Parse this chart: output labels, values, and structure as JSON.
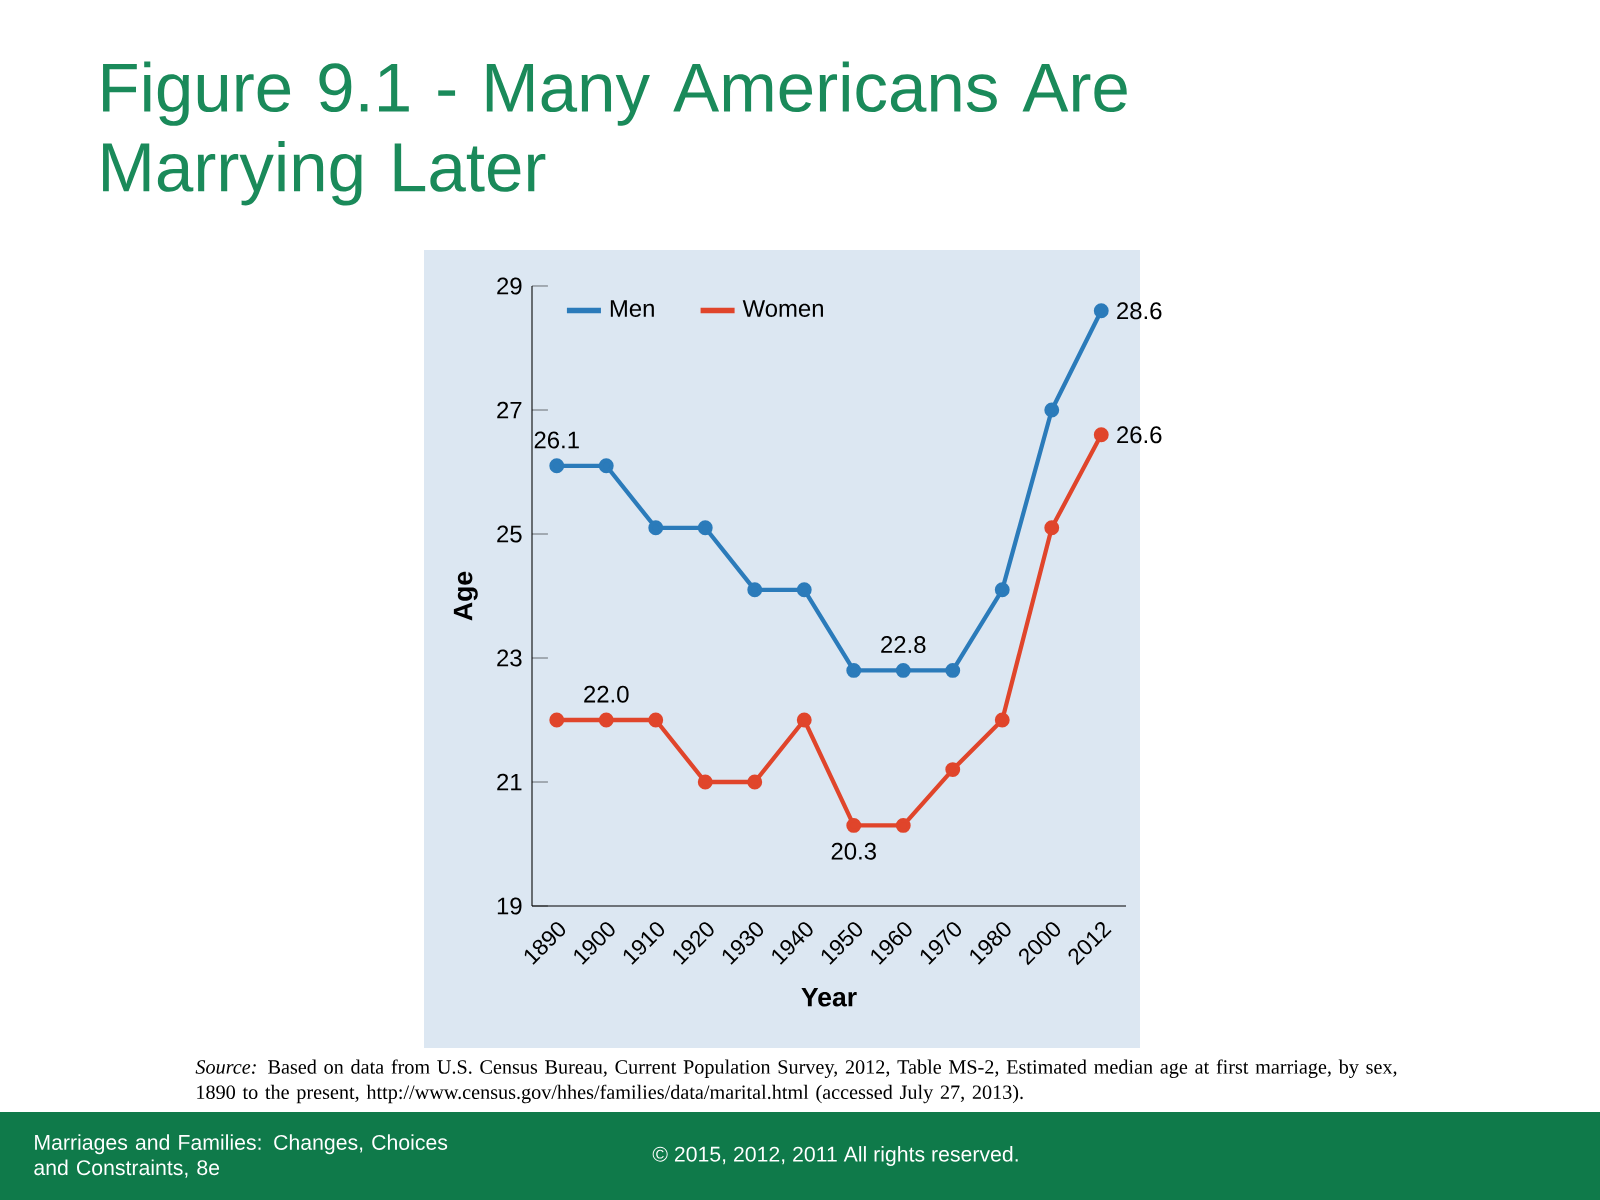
{
  "chart_data": {
    "type": "line",
    "title": "Figure 9.1 - Many Americans Are Marrying Later",
    "xlabel": "Year",
    "ylabel": "Age",
    "categories": [
      "1890",
      "1900",
      "1910",
      "1920",
      "1930",
      "1940",
      "1950",
      "1960",
      "1970",
      "1980",
      "2000",
      "2012"
    ],
    "series": [
      {
        "name": "Men",
        "color": "#2b7bba",
        "values": [
          26.1,
          26.1,
          25.1,
          25.1,
          24.1,
          24.1,
          22.8,
          22.8,
          22.8,
          24.1,
          27.0,
          28.6
        ],
        "value_labels": [
          "26.1",
          null,
          null,
          null,
          null,
          null,
          null,
          "22.8",
          null,
          null,
          null,
          "28.6"
        ]
      },
      {
        "name": "Women",
        "color": "#e0452b",
        "values": [
          22.0,
          22.0,
          22.0,
          21.0,
          21.0,
          22.0,
          20.3,
          20.3,
          21.2,
          22.0,
          25.1,
          26.6
        ],
        "value_labels": [
          null,
          "22.0",
          null,
          null,
          null,
          null,
          "20.3",
          null,
          null,
          null,
          null,
          "26.6"
        ]
      }
    ],
    "ylim": [
      19,
      29
    ],
    "yticks": [
      19,
      21,
      23,
      25,
      27,
      29
    ],
    "legend": "top left",
    "marker": "circle",
    "line_style": "solid",
    "grid": false,
    "annotations": [
      "*Source:* Based on data from U.S. Census Bureau, Current Population Survey, 2012, Table MS-2, Estimated median age at first marriage, by sex, 1890 to the present, http://www.census.gov/hhes/families/data/marital.html (accessed July 27, 2013).",
      "Marriages and Families: Changes, Choices and Constraints, 8e",
      "© 2015, 2012, 2011 All rights reserved."
    ]
  }
}
